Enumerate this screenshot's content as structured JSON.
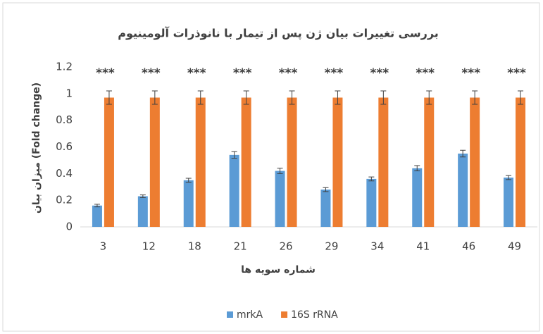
{
  "chart_data": {
    "type": "bar",
    "title": "بررسی تغییرات بیان ژن پس از تیمار با نانوذرات آلومینیوم",
    "x_label": "شماره سویه ها",
    "y_label": "میزان بیان (Fold change)",
    "categories": [
      "3",
      "12",
      "18",
      "21",
      "26",
      "29",
      "34",
      "41",
      "46",
      "49"
    ],
    "series": [
      {
        "name": "mrkA",
        "color": "#5b9bd5",
        "values": [
          0.16,
          0.23,
          0.35,
          0.54,
          0.42,
          0.28,
          0.36,
          0.44,
          0.55,
          0.37
        ],
        "errors": [
          0.01,
          0.01,
          0.015,
          0.025,
          0.02,
          0.015,
          0.015,
          0.02,
          0.025,
          0.015
        ]
      },
      {
        "name": "16S rRNA",
        "color": "#ed7d31",
        "values": [
          0.97,
          0.97,
          0.97,
          0.97,
          0.97,
          0.97,
          0.97,
          0.97,
          0.97,
          0.97
        ],
        "errors": [
          0.05,
          0.05,
          0.05,
          0.05,
          0.05,
          0.05,
          0.05,
          0.05,
          0.05,
          0.05
        ]
      }
    ],
    "annotations": [
      "***",
      "***",
      "***",
      "***",
      "***",
      "***",
      "***",
      "***",
      "***",
      "***"
    ],
    "ylim": [
      0,
      1.2
    ],
    "yticks": [
      0,
      0.2,
      0.4,
      0.6,
      0.8,
      1,
      1.2
    ],
    "grid": false,
    "legend": "bottom"
  }
}
